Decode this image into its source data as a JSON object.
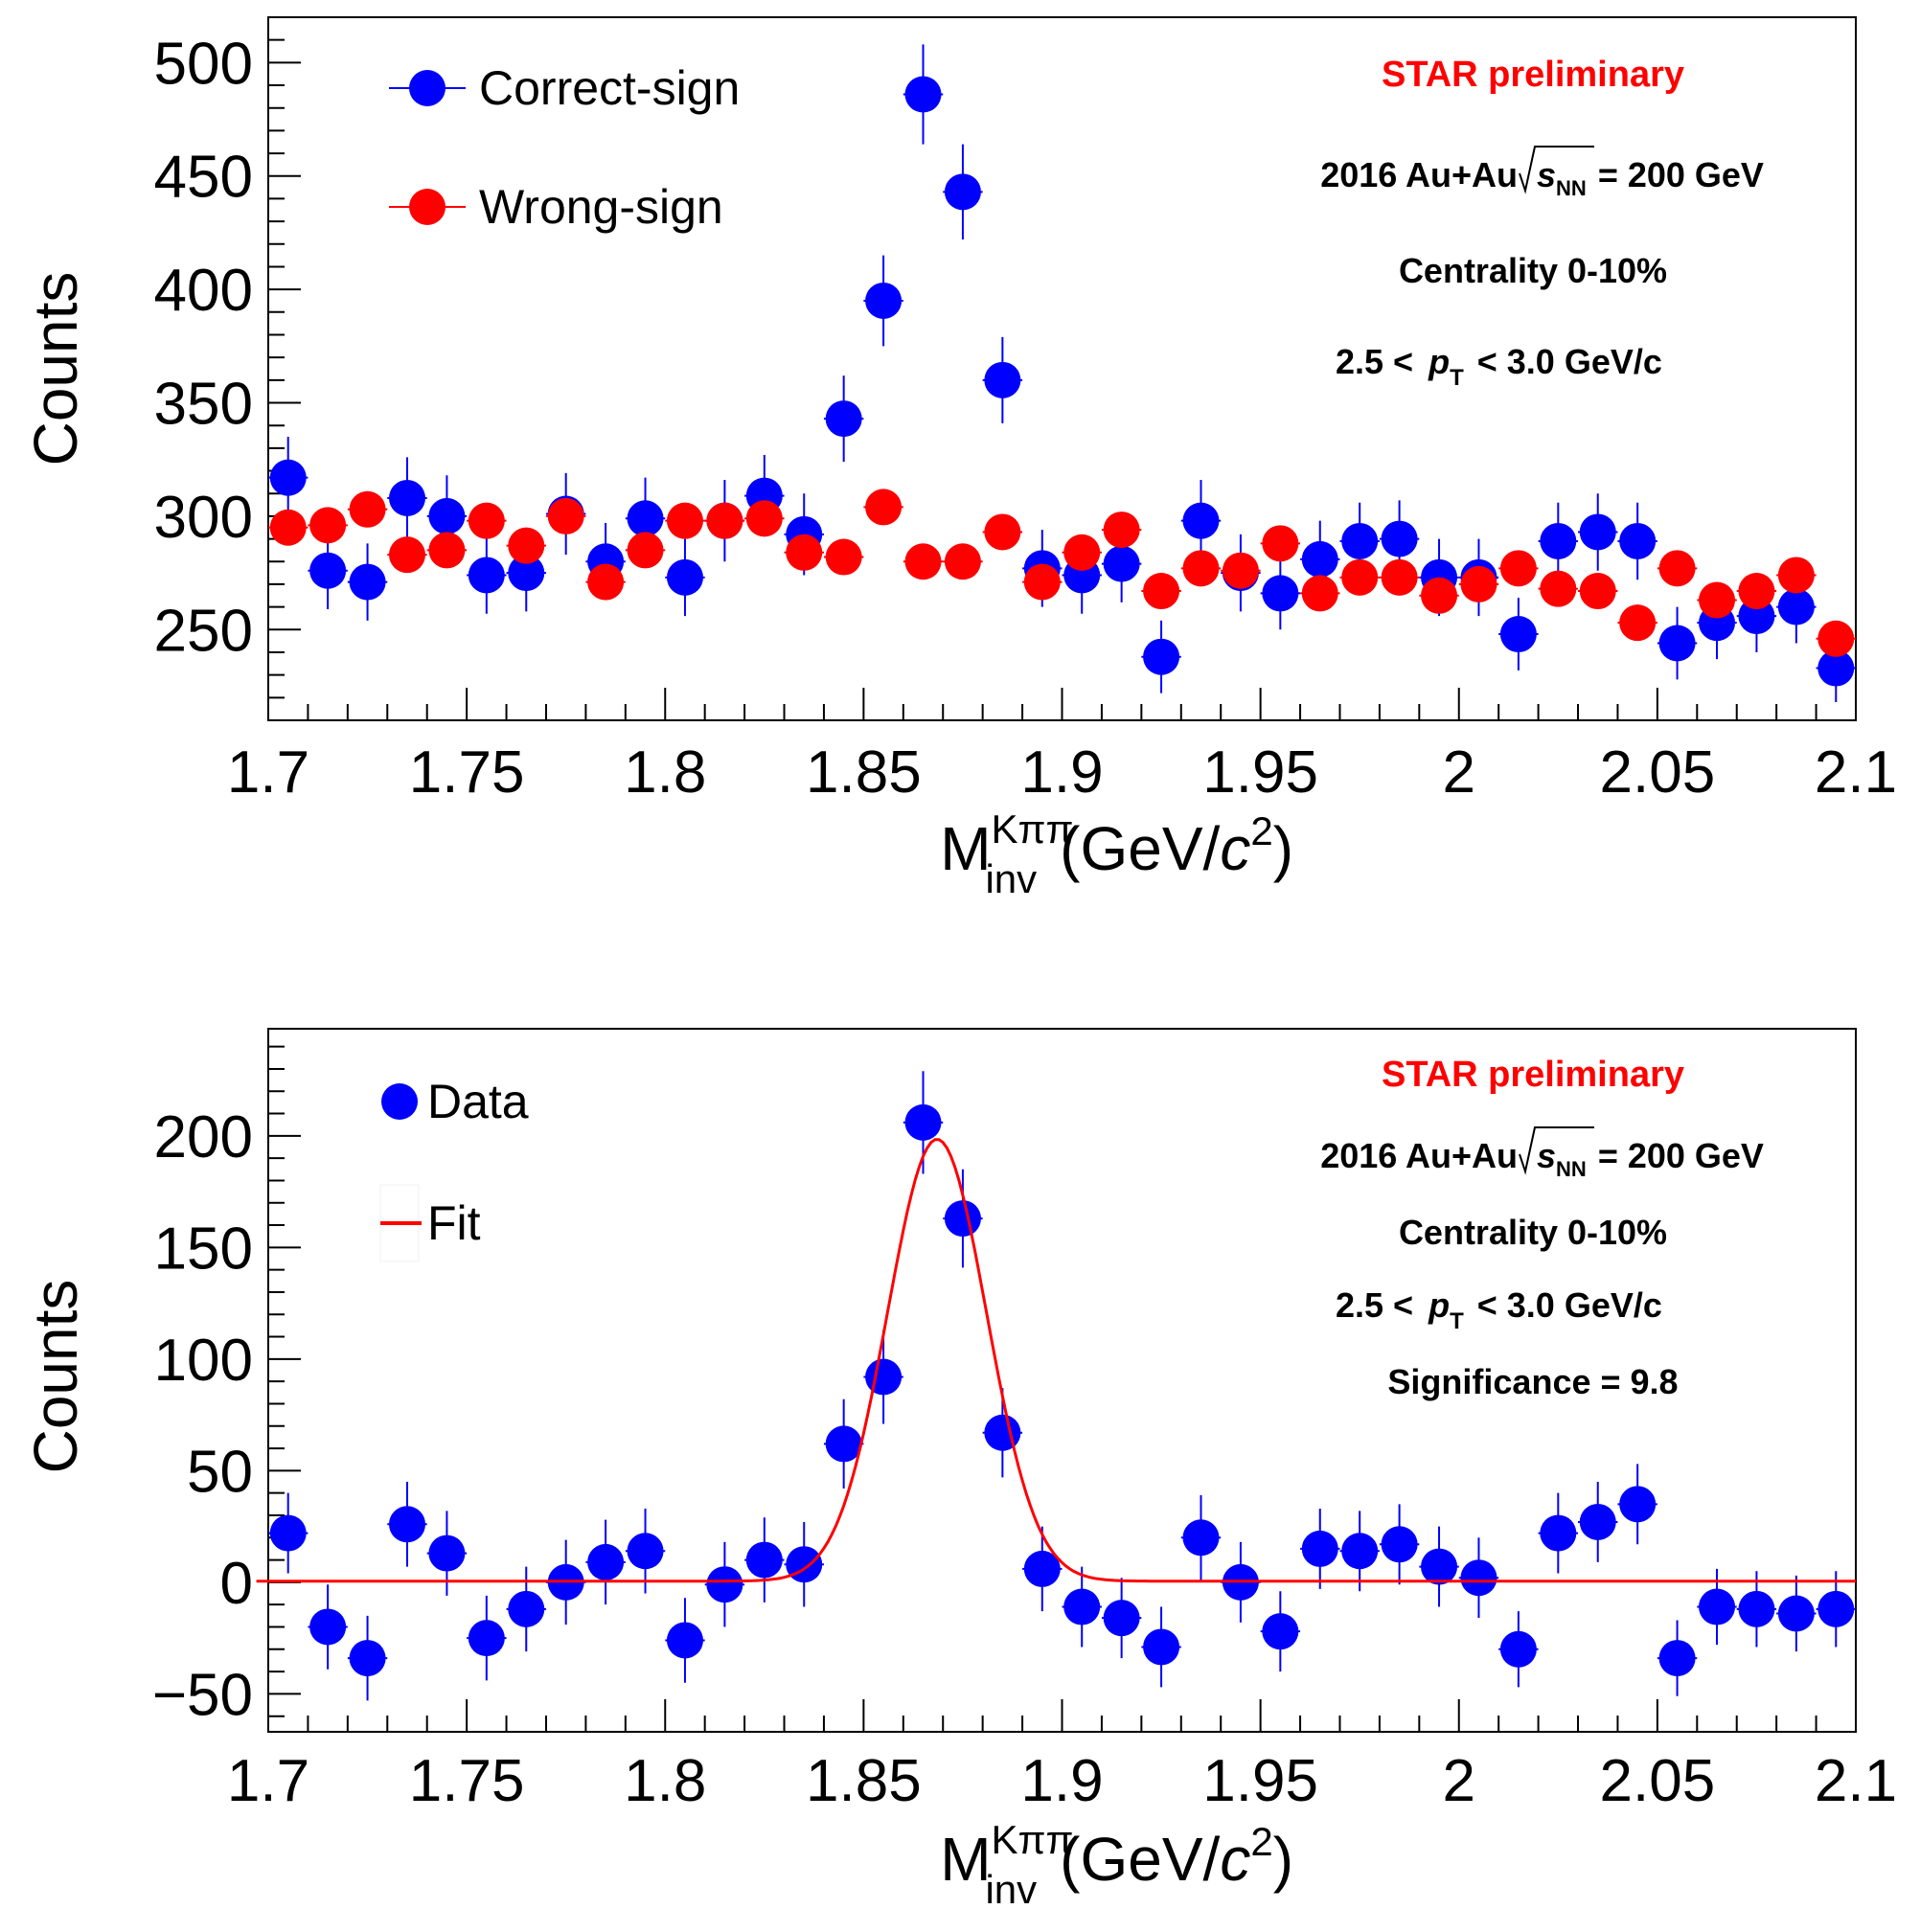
{
  "chart_data": [
    {
      "type": "scatter",
      "panel": "top",
      "xlabel": "M_inv^Kππ (GeV/c²)",
      "xlabel_main": "M",
      "xlabel_sup": "Kππ",
      "xlabel_sub": "inv",
      "xlabel_unit_open": "(GeV/",
      "xlabel_unit_c": "c",
      "xlabel_unit_exp": "2",
      "xlabel_unit_close": ")",
      "ylabel": "Counts",
      "xlim": [
        1.7,
        2.1
      ],
      "ylim": [
        210,
        520
      ],
      "xticks": [
        1.7,
        1.75,
        1.8,
        1.85,
        1.9,
        1.95,
        2.0,
        2.05,
        2.1
      ],
      "xtick_labels": [
        "1.7",
        "1.75",
        "1.8",
        "1.85",
        "1.9",
        "1.95",
        "2",
        "2.05",
        "2.1"
      ],
      "yticks": [
        250,
        300,
        350,
        400,
        450,
        500
      ],
      "ytick_labels": [
        "250",
        "300",
        "350",
        "400",
        "450",
        "500"
      ],
      "annotations": {
        "experiment": "STAR preliminary",
        "system_prefix": "2016 Au+Au",
        "sqrt_s": "s",
        "sqrt_s_sub": "NN",
        "system_suffix": "= 200 GeV",
        "centrality": "Centrality 0-10%",
        "pt_prefix": "2.5 <",
        "pt_var": "p",
        "pt_sub": "T",
        "pt_suffix": "< 3.0 GeV/c"
      },
      "series": [
        {
          "name": "Correct-sign",
          "color": "#0000ff",
          "x": [
            1.7,
            1.71,
            1.72,
            1.73,
            1.74,
            1.75,
            1.76,
            1.77,
            1.78,
            1.79,
            1.8,
            1.81,
            1.82,
            1.83,
            1.84,
            1.85,
            1.86,
            1.87,
            1.88,
            1.89,
            1.9,
            1.91,
            1.92,
            1.93,
            1.94,
            1.95,
            1.96,
            1.97,
            1.98,
            1.99,
            2.0,
            2.01,
            2.02,
            2.03,
            2.04,
            2.05,
            2.06,
            2.07,
            2.08,
            2.09
          ],
          "y": [
            317,
            276,
            271,
            308,
            300,
            274,
            275,
            301,
            280,
            299,
            273,
            298,
            309,
            292,
            343,
            395,
            486,
            443,
            360,
            277,
            274,
            279,
            238,
            298,
            275,
            266,
            281,
            289,
            290,
            273,
            273,
            248,
            289,
            293,
            289,
            244,
            253,
            256,
            260,
            233
          ],
          "yerr": [
            18,
            17,
            17,
            18,
            18,
            17,
            17,
            18,
            17,
            18,
            17,
            18,
            18,
            18,
            19,
            20,
            22,
            21,
            19,
            17,
            17,
            17,
            16,
            18,
            17,
            16,
            17,
            17,
            17,
            17,
            17,
            16,
            17,
            17,
            17,
            16,
            16,
            16,
            16,
            15
          ]
        },
        {
          "name": "Wrong-sign",
          "color": "#ff0000",
          "x": [
            1.7,
            1.71,
            1.72,
            1.73,
            1.74,
            1.75,
            1.76,
            1.77,
            1.78,
            1.79,
            1.8,
            1.81,
            1.82,
            1.83,
            1.84,
            1.85,
            1.86,
            1.87,
            1.88,
            1.89,
            1.9,
            1.91,
            1.92,
            1.93,
            1.94,
            1.95,
            1.96,
            1.97,
            1.98,
            1.99,
            2.0,
            2.01,
            2.02,
            2.03,
            2.04,
            2.05,
            2.06,
            2.07,
            2.08,
            2.09
          ],
          "y": [
            295,
            296,
            303,
            283,
            285,
            298,
            287,
            300,
            271,
            285,
            298,
            298,
            299,
            284,
            282,
            304,
            280,
            280,
            293,
            271,
            284,
            294,
            267,
            277,
            276,
            288,
            266,
            273,
            273,
            265,
            270,
            277,
            268,
            267,
            253,
            277,
            263,
            267,
            274,
            246
          ],
          "yerr": [
            0,
            0,
            0,
            0,
            0,
            0,
            0,
            0,
            0,
            0,
            0,
            0,
            0,
            0,
            0,
            0,
            0,
            0,
            0,
            0,
            0,
            0,
            0,
            0,
            0,
            0,
            0,
            0,
            0,
            0,
            0,
            0,
            0,
            0,
            0,
            0,
            0,
            0,
            0,
            0
          ]
        }
      ],
      "legend_position": "top-left"
    },
    {
      "type": "scatter",
      "panel": "bottom",
      "xlabel": "M_inv^Kππ (GeV/c²)",
      "xlabel_main": "M",
      "xlabel_sup": "Kππ",
      "xlabel_sub": "inv",
      "xlabel_unit_open": "(GeV/",
      "xlabel_unit_c": "c",
      "xlabel_unit_exp": "2",
      "xlabel_unit_close": ")",
      "ylabel": "Counts",
      "xlim": [
        1.7,
        2.1
      ],
      "ylim": [
        -67,
        248
      ],
      "xticks": [
        1.7,
        1.75,
        1.8,
        1.85,
        1.9,
        1.95,
        2.0,
        2.05,
        2.1
      ],
      "xtick_labels": [
        "1.7",
        "1.75",
        "1.8",
        "1.85",
        "1.9",
        "1.95",
        "2",
        "2.05",
        "2.1"
      ],
      "yticks": [
        -50,
        0,
        50,
        100,
        150,
        200
      ],
      "ytick_labels": [
        "−50",
        "0",
        "50",
        "100",
        "150",
        "200"
      ],
      "annotations": {
        "experiment": "STAR preliminary",
        "system_prefix": "2016 Au+Au",
        "sqrt_s": "s",
        "sqrt_s_sub": "NN",
        "system_suffix": "= 200 GeV",
        "centrality": "Centrality 0-10%",
        "pt_prefix": "2.5 <",
        "pt_var": "p",
        "pt_sub": "T",
        "pt_suffix": "< 3.0 GeV/c",
        "significance": "Significance = 9.8"
      },
      "series": [
        {
          "name": "Data",
          "color": "#0000ff",
          "x": [
            1.7,
            1.71,
            1.72,
            1.73,
            1.74,
            1.75,
            1.76,
            1.77,
            1.78,
            1.79,
            1.8,
            1.81,
            1.82,
            1.83,
            1.84,
            1.85,
            1.86,
            1.87,
            1.88,
            1.89,
            1.9,
            1.91,
            1.92,
            1.93,
            1.94,
            1.95,
            1.96,
            1.97,
            1.98,
            1.99,
            2.0,
            2.01,
            2.02,
            2.03,
            2.04,
            2.05,
            2.06,
            2.07,
            2.08,
            2.09
          ],
          "y": [
            22,
            -20,
            -34,
            26,
            13,
            -25,
            -12,
            0,
            9,
            14,
            -26,
            -1,
            10,
            8,
            62,
            92,
            206,
            163,
            67,
            6,
            -11,
            -16,
            -29,
            20,
            0,
            -22,
            15,
            14,
            17,
            7,
            2,
            -30,
            22,
            27,
            35,
            -34,
            -11,
            -12,
            -14,
            -12
          ],
          "yerr": [
            18,
            19,
            19,
            19,
            19,
            19,
            19,
            19,
            19,
            19,
            19,
            19,
            19,
            19,
            20,
            21,
            23,
            22,
            20,
            19,
            18,
            18,
            18,
            19,
            18,
            18,
            18,
            18,
            18,
            18,
            18,
            17,
            18,
            18,
            18,
            17,
            17,
            17,
            17,
            17
          ]
        },
        {
          "name": "Fit",
          "color": "#ff0000",
          "type": "line",
          "model": "gaussian",
          "mean": 1.8685,
          "sigma": 0.0125,
          "amplitude": 198,
          "baseline": 0.5,
          "x_range": [
            1.697,
            2.1
          ]
        }
      ],
      "legend_position": "top-left"
    }
  ]
}
